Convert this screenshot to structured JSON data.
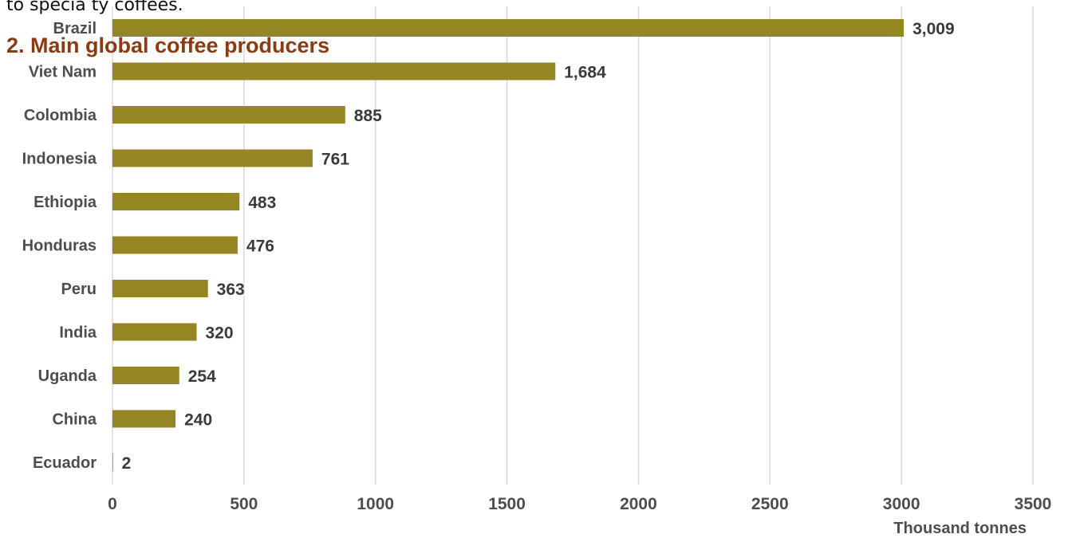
{
  "document": {
    "text_above": "to specia ty coffees.",
    "section_heading": "2.  Main global coffee producers"
  },
  "colors": {
    "bar": "#948622",
    "grid": "#d9d9d9",
    "heading": "#8a3b12",
    "label": "#4d4d4d"
  },
  "chart_data": {
    "type": "bar",
    "orientation": "horizontal",
    "categories": [
      "Brazil",
      "Viet Nam",
      "Colombia",
      "Indonesia",
      "Ethiopia",
      "Honduras",
      "Peru",
      "India",
      "Uganda",
      "China",
      "Ecuador"
    ],
    "values": [
      3009,
      1684,
      885,
      761,
      483,
      476,
      363,
      320,
      254,
      240,
      2
    ],
    "value_labels": [
      "3,009",
      "1,684",
      "885",
      "761",
      "483",
      "476",
      "363",
      "320",
      "254",
      "240",
      "2"
    ],
    "xlim": [
      0,
      3500
    ],
    "x_ticks": [
      0,
      500,
      1000,
      1500,
      2000,
      2500,
      3000,
      3500
    ],
    "xlabel": "Thousand tonnes",
    "grid": "vertical",
    "title": ""
  }
}
